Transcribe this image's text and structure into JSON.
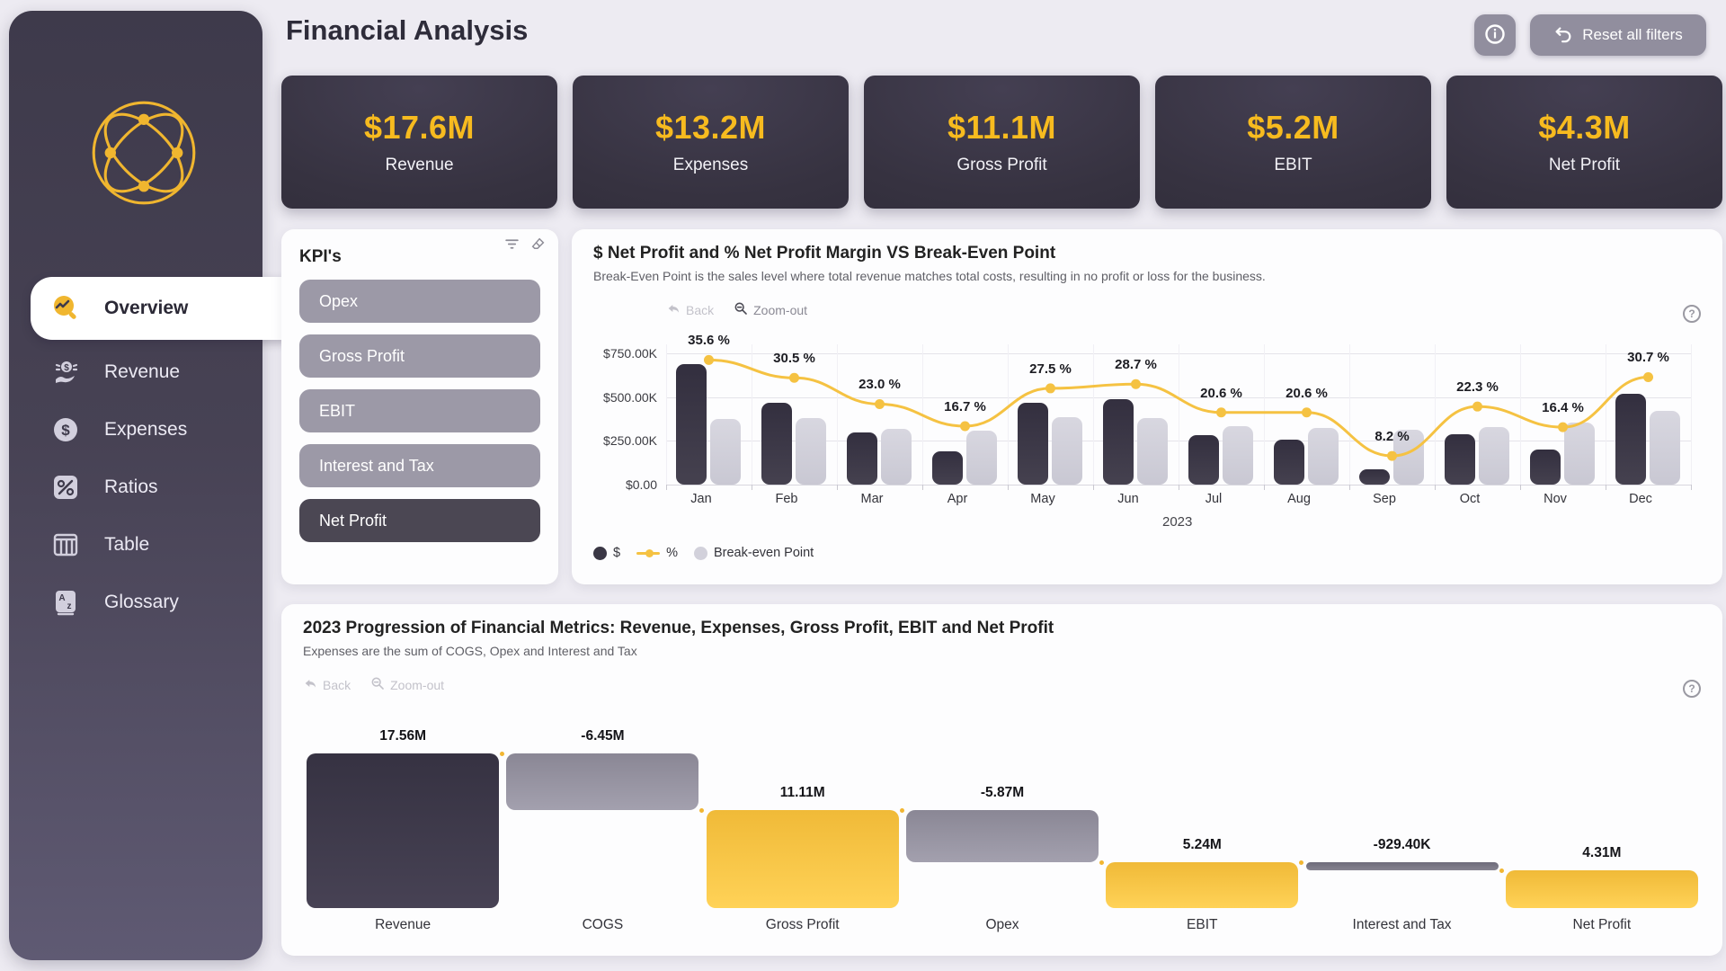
{
  "header": {
    "title": "Financial Analysis",
    "info_icon": "info-circle-icon",
    "reset_button": "Reset all filters",
    "reset_icon": "undo-arrow-icon"
  },
  "sidebar": {
    "logo_icon": "network-sphere-icon",
    "items": [
      {
        "label": "Overview",
        "icon": "overview-magnifier-icon",
        "active": true
      },
      {
        "label": "Revenue",
        "icon": "revenue-coin-hand-icon",
        "active": false
      },
      {
        "label": "Expenses",
        "icon": "dollar-circle-icon",
        "active": false
      },
      {
        "label": "Ratios",
        "icon": "percent-icon",
        "active": false
      },
      {
        "label": "Table",
        "icon": "table-columns-icon",
        "active": false
      },
      {
        "label": "Glossary",
        "icon": "glossary-book-icon",
        "active": false
      }
    ]
  },
  "kpi_cards": [
    {
      "value": "$17.6M",
      "label": "Revenue"
    },
    {
      "value": "$13.2M",
      "label": "Expenses"
    },
    {
      "value": "$11.1M",
      "label": "Gross Profit"
    },
    {
      "value": "$5.2M",
      "label": "EBIT"
    },
    {
      "value": "$4.3M",
      "label": "Net Profit"
    }
  ],
  "slicer": {
    "title": "KPI's",
    "tool_icons": [
      "filter-icon",
      "eraser-icon"
    ],
    "options": [
      {
        "label": "Opex",
        "selected": false
      },
      {
        "label": "Gross Profit",
        "selected": false
      },
      {
        "label": "EBIT",
        "selected": false
      },
      {
        "label": "Interest and Tax",
        "selected": false
      },
      {
        "label": "Net Profit",
        "selected": true
      }
    ]
  },
  "colors": {
    "accent_yellow": "#f2b632",
    "kpi_value_yellow": "#f7bb1f",
    "dark_bar": "#3a3745",
    "breakeven_bar": "#d2d1db",
    "line_yellow": "#f5c242",
    "waterfall_gray": "#938fa0",
    "sidebar_bg": "#4a4557",
    "page_bg": "#edebf2"
  },
  "chart_data": [
    {
      "type": "combo-bar-line",
      "title": "$ Net Profit and % Net Profit Margin VS Break-Even Point",
      "subtitle": "Break-Even Point is the sales level where total revenue matches total costs, resulting in no profit or loss for the business.",
      "toolbar": [
        {
          "label": "Back",
          "icon": "back-arrow-icon",
          "state": "disabled"
        },
        {
          "label": "Zoom-out",
          "icon": "zoom-out-magnifier-icon",
          "state": "enabled"
        }
      ],
      "help_icon": "question-circle-icon",
      "categories": [
        "Jan",
        "Feb",
        "Mar",
        "Apr",
        "May",
        "Jun",
        "Jul",
        "Aug",
        "Sep",
        "Oct",
        "Nov",
        "Dec"
      ],
      "xlabel": "2023",
      "y_ticks": [
        "$0.00",
        "$250.00K",
        "$500.00K",
        "$750.00K"
      ],
      "y_tick_values": [
        0,
        250000,
        500000,
        750000
      ],
      "ylim": [
        0,
        800000
      ],
      "secondary_pct_axis_max": 40,
      "series": [
        {
          "name": "$",
          "type": "bar",
          "values": [
            690000,
            470000,
            300000,
            190000,
            465000,
            490000,
            280000,
            255000,
            85000,
            290000,
            200000,
            520000
          ]
        },
        {
          "name": "Break-even Point",
          "type": "bar",
          "values": [
            375000,
            380000,
            320000,
            310000,
            385000,
            380000,
            335000,
            325000,
            315000,
            330000,
            355000,
            420000
          ]
        },
        {
          "name": "%",
          "type": "line",
          "values_pct": [
            35.6,
            30.5,
            23.0,
            16.7,
            27.5,
            28.7,
            20.6,
            20.6,
            8.2,
            22.3,
            16.4,
            30.7
          ],
          "point_labels": [
            "35.6 %",
            "30.5 %",
            "23.0 %",
            "16.7 %",
            "27.5 %",
            "28.7 %",
            "20.6 %",
            "20.6 %",
            "8.2 %",
            "22.3 %",
            "16.4 %",
            "30.7 %"
          ]
        }
      ],
      "legend": [
        {
          "label": "$",
          "marker": "dark-circle"
        },
        {
          "label": "%",
          "marker": "yellow-line"
        },
        {
          "label": "Break-even Point",
          "marker": "light-circle"
        }
      ]
    },
    {
      "type": "waterfall",
      "title": "2023 Progression of Financial Metrics: Revenue, Expenses, Gross Profit, EBIT and Net Profit",
      "subtitle": "Expenses are the sum of COGS, Opex and Interest and Tax",
      "toolbar": [
        {
          "label": "Back",
          "icon": "back-arrow-icon",
          "state": "disabled"
        },
        {
          "label": "Zoom-out",
          "icon": "zoom-out-magnifier-icon",
          "state": "disabled"
        }
      ],
      "help_icon": "question-circle-icon",
      "categories": [
        "Revenue",
        "COGS",
        "Gross Profit",
        "Opex",
        "EBIT",
        "Interest and Tax",
        "Net Profit"
      ],
      "labels": [
        "17.56M",
        "-6.45M",
        "11.11M",
        "-5.87M",
        "5.24M",
        "-929.40K",
        "4.31M"
      ],
      "values_m": [
        17.56,
        -6.45,
        11.11,
        -5.87,
        5.24,
        -0.9294,
        4.31
      ],
      "starts_m": [
        0,
        11.11,
        0,
        5.24,
        0,
        4.31,
        0
      ],
      "ends_m": [
        17.56,
        17.56,
        11.11,
        11.11,
        5.24,
        5.24,
        4.31
      ],
      "bar_kinds": [
        "dark",
        "gray",
        "yellow",
        "gray",
        "yellow",
        "slate",
        "yellow"
      ]
    }
  ]
}
